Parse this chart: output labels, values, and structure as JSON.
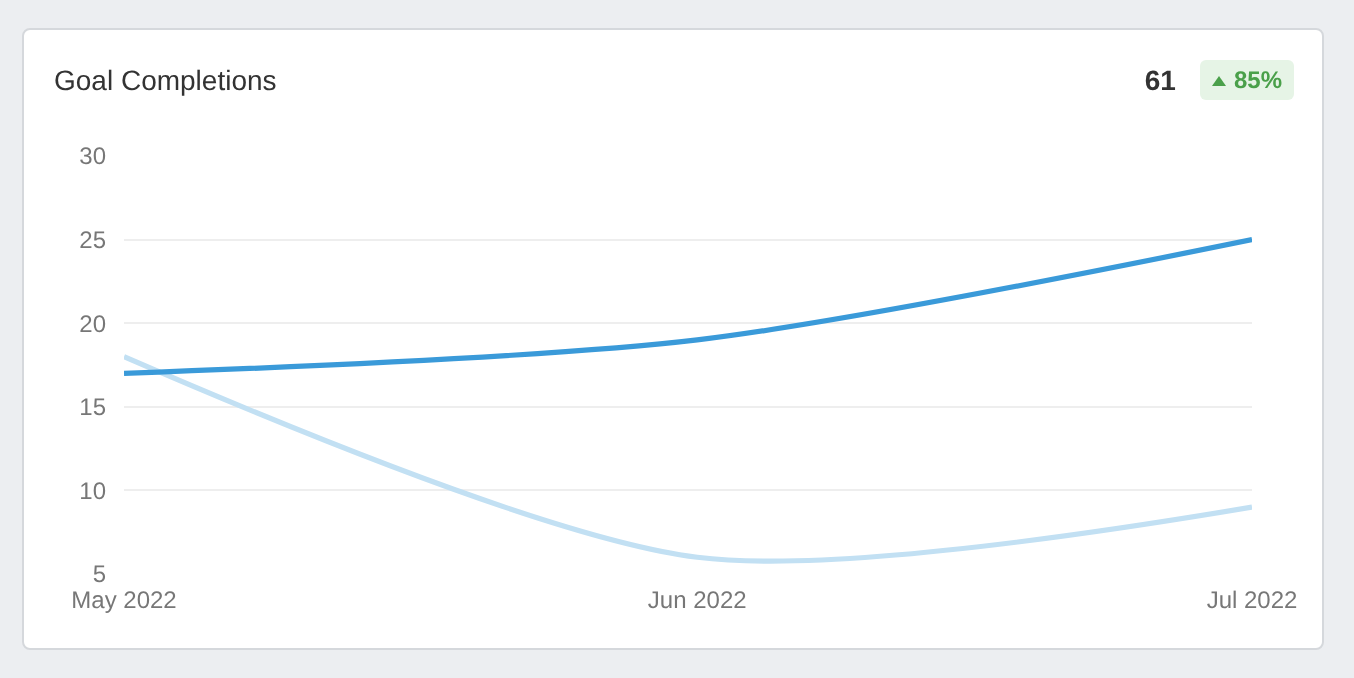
{
  "chart_data": {
    "type": "line",
    "title": "Goal Completions",
    "annotations": [
      "61",
      "85%"
    ],
    "x": [
      "2022-05",
      "2022-06",
      "2022-07"
    ],
    "series": [
      {
        "color": "#3a9ad9",
        "values": [
          17,
          19,
          25
        ]
      },
      {
        "color": "#c2e0f3",
        "values": [
          18,
          6,
          9
        ]
      }
    ],
    "xlim": [
      "2022-05",
      "2022-07"
    ],
    "xticks": [
      {
        "value": "2022-05",
        "label": "May 2022"
      },
      {
        "value": "2022-06",
        "label": "Jun 2022"
      },
      {
        "value": "2022-07",
        "label": "Jul 2022"
      }
    ],
    "ylim": [
      5,
      30
    ],
    "yticks": [
      5,
      10,
      15,
      20,
      25,
      30
    ],
    "grid": "y",
    "marker": "none",
    "line_style": "solid"
  }
}
